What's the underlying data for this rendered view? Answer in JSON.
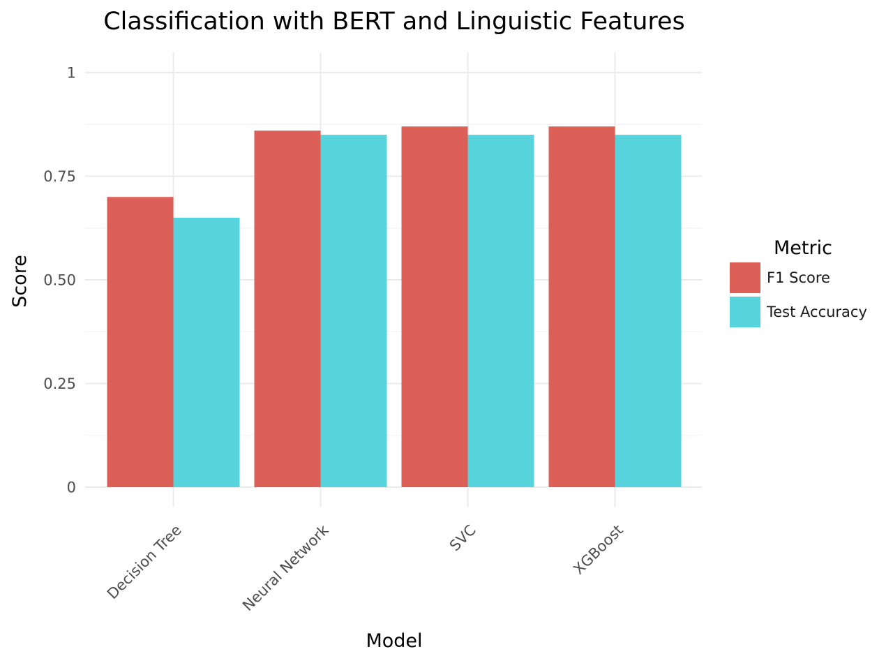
{
  "chart_data": {
    "type": "bar",
    "title": "Classification with BERT and Linguistic Features",
    "xlabel": "Model",
    "ylabel": "Score",
    "categories": [
      "Decision Tree",
      "Neural Network",
      "SVC",
      "XGBoost"
    ],
    "series": [
      {
        "name": "F1 Score",
        "values": [
          0.7,
          0.86,
          0.87,
          0.87
        ],
        "color": "#dc5f58"
      },
      {
        "name": "Test Accuracy",
        "values": [
          0.65,
          0.85,
          0.85,
          0.85
        ],
        "color": "#57d3db"
      }
    ],
    "ylim": [
      0,
      1
    ],
    "yticks": [
      0,
      0.25,
      0.5,
      0.75,
      1
    ],
    "ytick_labels": [
      "0",
      "0.25",
      "0.50",
      "0.75",
      "1"
    ],
    "legend": {
      "title": "Metric",
      "position": "right"
    },
    "grid": true
  }
}
